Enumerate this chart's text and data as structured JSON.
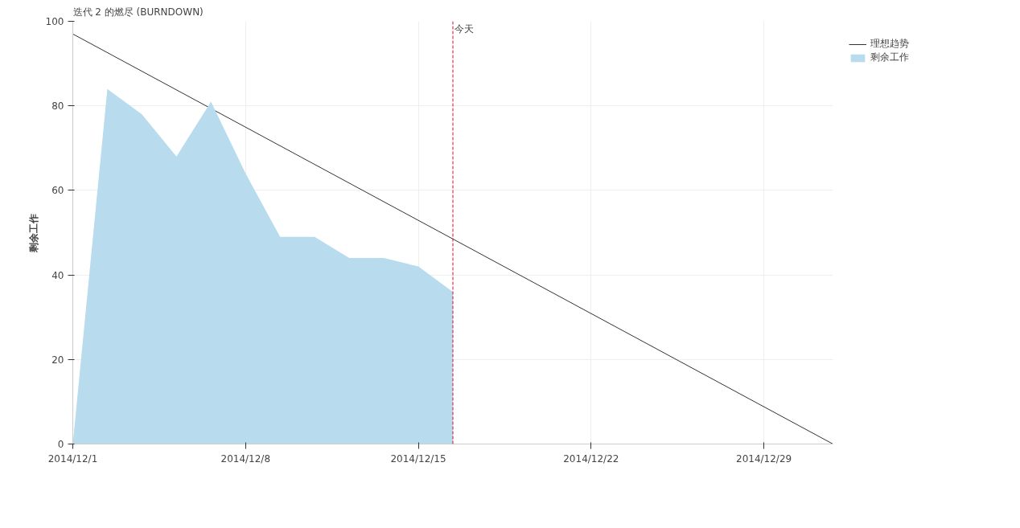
{
  "chart_data": {
    "type": "area",
    "title": "迭代 2 的燃尽 (BURNDOWN)",
    "ylabel": "剩余工作",
    "series": [
      {
        "name": "理想趋势",
        "type": "line",
        "color": "#333333",
        "x": [
          "2014-12-01T00:00",
          "2014-12-31T19:12"
        ],
        "values": [
          97,
          0
        ]
      },
      {
        "name": "剩余工作",
        "color": "#b8dced",
        "x": [
          "2014-12-01T00:00",
          "2014-12-02T09:36",
          "2014-12-03T19:12",
          "2014-12-05T04:48",
          "2014-12-06T14:24",
          "2014-12-08T00:00",
          "2014-12-09T09:36",
          "2014-12-10T19:12",
          "2014-12-12T04:48",
          "2014-12-13T14:24",
          "2014-12-15T00:00",
          "2014-12-16T09:36"
        ],
        "values": [
          0,
          84,
          78,
          68,
          81,
          64,
          49,
          49,
          44,
          44,
          42,
          36
        ]
      }
    ],
    "ref_lines": [
      {
        "axis": "x",
        "value": "2014-12-16T09:36",
        "label": "今天",
        "color": "#c8102e",
        "line_style": "dashed"
      }
    ],
    "xlim": [
      "2014-12-01T00:00",
      "2014-12-31T19:12"
    ],
    "xticks": [
      {
        "value": "2014-12-01",
        "label": "2014/12/1"
      },
      {
        "value": "2014-12-08",
        "label": "2014/12/8"
      },
      {
        "value": "2014-12-15",
        "label": "2014/12/15"
      },
      {
        "value": "2014-12-22",
        "label": "2014/12/22"
      },
      {
        "value": "2014-12-29",
        "label": "2014/12/29"
      }
    ],
    "ylim": [
      0,
      100
    ],
    "yticks": [
      0,
      20,
      40,
      60,
      80,
      100
    ],
    "grid": true,
    "legend": "top right"
  }
}
